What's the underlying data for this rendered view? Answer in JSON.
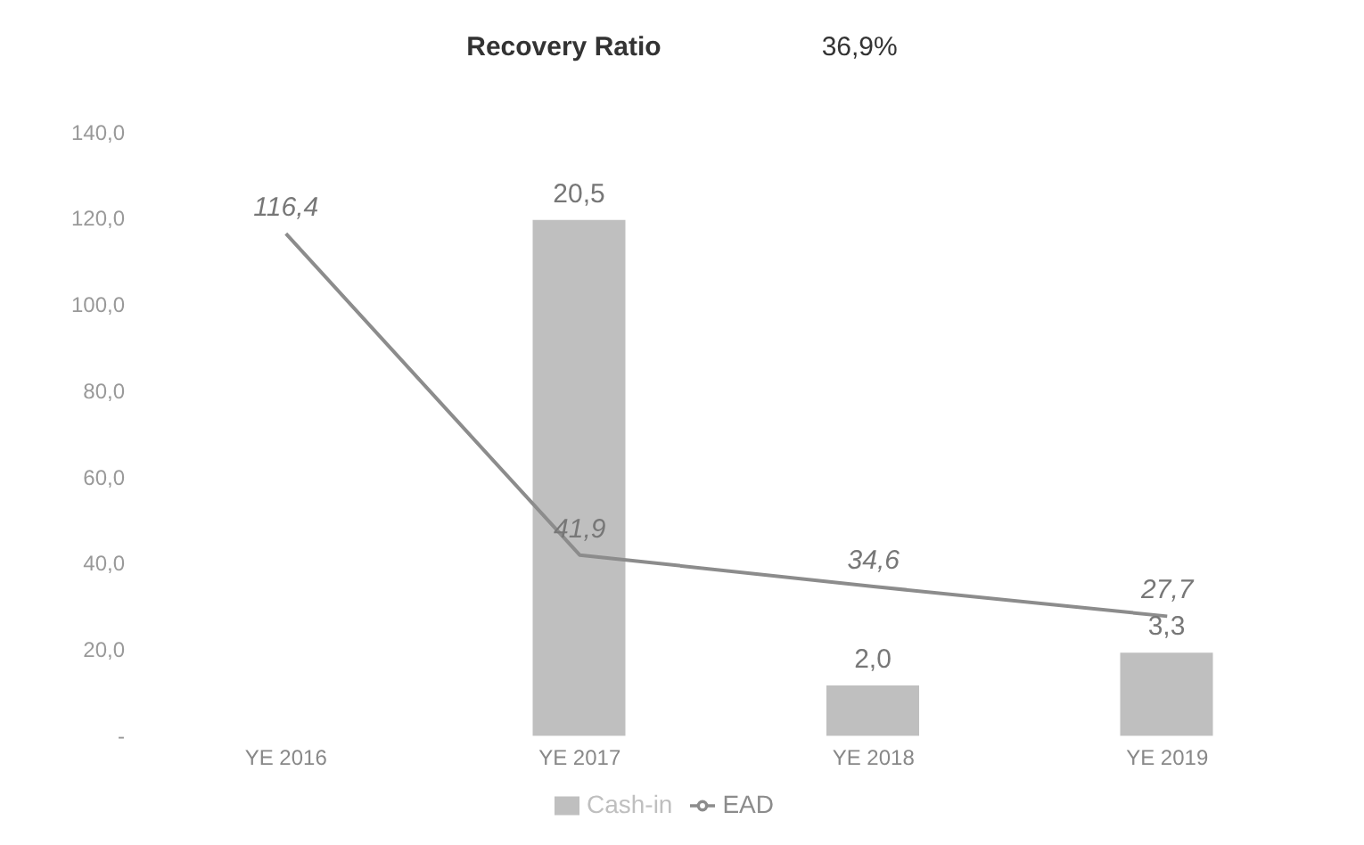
{
  "chart_data": {
    "type": "bar",
    "title": "Recovery Ratio",
    "annotations": [
      "36,9%"
    ],
    "categories": [
      "YE 2016",
      "YE 2017",
      "YE 2018",
      "YE 2019"
    ],
    "series": [
      {
        "name": "Cash-in",
        "axis": "y2",
        "color": "#bfbfbf",
        "values": [
          null,
          20.5,
          2.0,
          3.3
        ],
        "value_labels": [
          null,
          "20,5",
          "2,0",
          "3,3"
        ]
      },
      {
        "name": "EAD",
        "type": "line",
        "color": "#8c8c8c",
        "values": [
          116.4,
          41.9,
          34.6,
          27.7
        ],
        "value_labels": [
          "116,4",
          "41,9",
          "34,6",
          "27,7"
        ]
      }
    ],
    "ylim": [
      0,
      140
    ],
    "yticks": [
      {
        "value": 0,
        "label": "-"
      },
      {
        "value": 20,
        "label": "20,0"
      },
      {
        "value": 40,
        "label": "40,0"
      },
      {
        "value": 60,
        "label": "60,0"
      },
      {
        "value": 80,
        "label": "80,0"
      },
      {
        "value": 100,
        "label": "100,0"
      },
      {
        "value": 120,
        "label": "120,0"
      },
      {
        "value": 140,
        "label": "140,0"
      }
    ],
    "grid": false,
    "legend": "bottom",
    "marker": "none",
    "line_style": "solid"
  }
}
